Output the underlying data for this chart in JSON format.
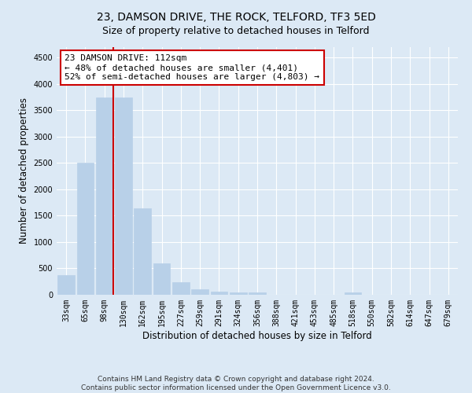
{
  "title": "23, DAMSON DRIVE, THE ROCK, TELFORD, TF3 5ED",
  "subtitle": "Size of property relative to detached houses in Telford",
  "xlabel": "Distribution of detached houses by size in Telford",
  "ylabel": "Number of detached properties",
  "categories": [
    "33sqm",
    "65sqm",
    "98sqm",
    "130sqm",
    "162sqm",
    "195sqm",
    "227sqm",
    "259sqm",
    "291sqm",
    "324sqm",
    "356sqm",
    "388sqm",
    "421sqm",
    "453sqm",
    "485sqm",
    "518sqm",
    "550sqm",
    "582sqm",
    "614sqm",
    "647sqm",
    "679sqm"
  ],
  "values": [
    380,
    2500,
    3750,
    3750,
    1640,
    600,
    240,
    100,
    60,
    50,
    40,
    0,
    0,
    0,
    0,
    50,
    0,
    0,
    0,
    0,
    0
  ],
  "bar_color": "#b8d0e8",
  "bar_edgecolor": "#b8d0e8",
  "vline_color": "#cc0000",
  "annotation_line1": "23 DAMSON DRIVE: 112sqm",
  "annotation_line2": "← 48% of detached houses are smaller (4,401)",
  "annotation_line3": "52% of semi-detached houses are larger (4,803) →",
  "annotation_box_color": "#ffffff",
  "annotation_box_edgecolor": "#cc0000",
  "ylim": [
    0,
    4700
  ],
  "yticks": [
    0,
    500,
    1000,
    1500,
    2000,
    2500,
    3000,
    3500,
    4000,
    4500
  ],
  "background_color": "#dce9f5",
  "plot_bg_color": "#dce9f5",
  "footer": "Contains HM Land Registry data © Crown copyright and database right 2024.\nContains public sector information licensed under the Open Government Licence v3.0.",
  "title_fontsize": 10,
  "xlabel_fontsize": 8.5,
  "ylabel_fontsize": 8.5,
  "tick_fontsize": 7,
  "annotation_fontsize": 8,
  "footer_fontsize": 6.5
}
